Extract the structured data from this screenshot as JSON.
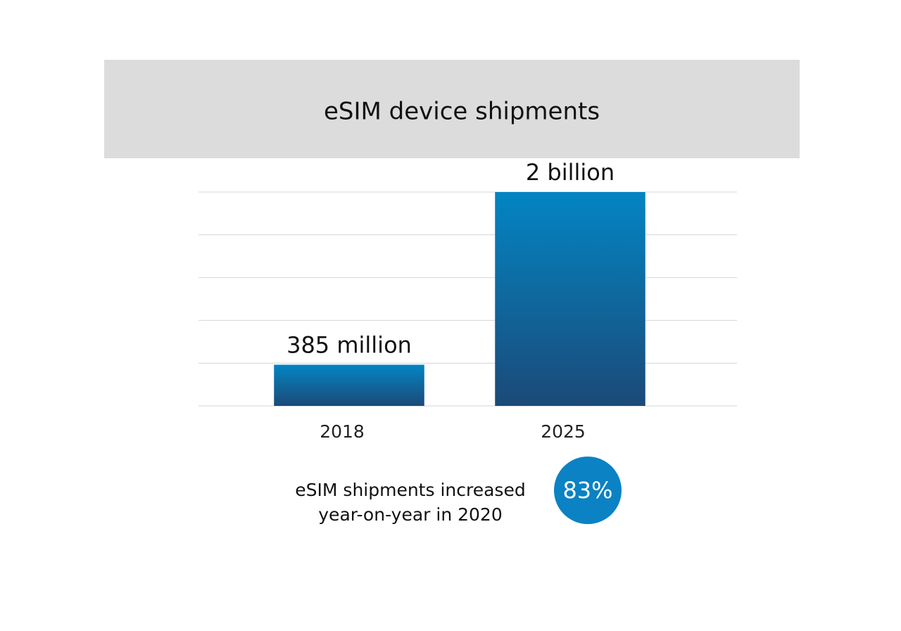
{
  "chart_data": {
    "type": "bar",
    "title": "eSIM device shipments",
    "categories": [
      "2018",
      "2025"
    ],
    "values": [
      385,
      2000
    ],
    "value_labels": [
      "385 million",
      "2 billion"
    ],
    "color": "#0385c3",
    "ylim": [
      0,
      2000
    ],
    "yticks": [
      0,
      400,
      800,
      1200,
      1600,
      2000
    ],
    "grid": true,
    "annotation": {
      "lines": [
        "eSIM shipments increased",
        "year-on-year in 2020"
      ],
      "highlight": "83%"
    }
  }
}
